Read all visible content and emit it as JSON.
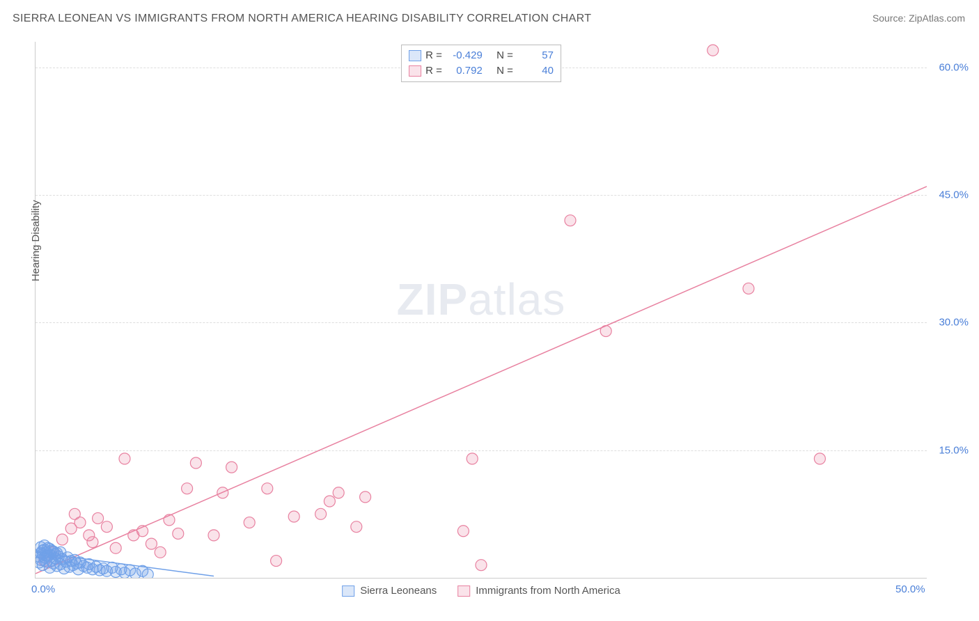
{
  "title": "SIERRA LEONEAN VS IMMIGRANTS FROM NORTH AMERICA HEARING DISABILITY CORRELATION CHART",
  "source": "Source: ZipAtlas.com",
  "y_axis_label": "Hearing Disability",
  "watermark": {
    "part1": "ZIP",
    "part2": "atlas"
  },
  "chart": {
    "type": "scatter",
    "x_range": [
      0,
      50
    ],
    "y_range": [
      0,
      63
    ],
    "x_ticks": [
      {
        "value": 0,
        "label": "0.0%"
      },
      {
        "value": 50,
        "label": "50.0%"
      }
    ],
    "y_ticks": [
      {
        "value": 15,
        "label": "15.0%"
      },
      {
        "value": 30,
        "label": "30.0%"
      },
      {
        "value": 45,
        "label": "45.0%"
      },
      {
        "value": 60,
        "label": "60.0%"
      }
    ],
    "background_color": "#ffffff",
    "grid_color": "#dddddd",
    "marker_radius": 8,
    "marker_opacity": 0.35,
    "marker_stroke_width": 1.2,
    "line_width": 1.5
  },
  "series": {
    "sierra_leoneans": {
      "label": "Sierra Leoneans",
      "color": "#6fa0e8",
      "fill": "rgba(111,160,232,0.25)",
      "r_value": "-0.429",
      "n_value": "57",
      "trend": {
        "x1": 0,
        "y1": 3.0,
        "x2": 10,
        "y2": 0.2
      },
      "points": [
        [
          0.2,
          1.8
        ],
        [
          0.3,
          2.1
        ],
        [
          0.4,
          1.5
        ],
        [
          0.5,
          2.4
        ],
        [
          0.6,
          1.9
        ],
        [
          0.7,
          2.6
        ],
        [
          0.8,
          1.2
        ],
        [
          0.9,
          2.0
        ],
        [
          1.0,
          1.7
        ],
        [
          1.1,
          2.3
        ],
        [
          1.2,
          1.4
        ],
        [
          1.3,
          2.5
        ],
        [
          1.4,
          1.6
        ],
        [
          1.5,
          2.2
        ],
        [
          1.6,
          1.1
        ],
        [
          1.7,
          1.9
        ],
        [
          1.8,
          2.4
        ],
        [
          1.9,
          1.3
        ],
        [
          2.0,
          2.0
        ],
        [
          2.1,
          1.5
        ],
        [
          2.2,
          2.1
        ],
        [
          2.3,
          1.7
        ],
        [
          2.4,
          1.0
        ],
        [
          2.5,
          1.8
        ],
        [
          2.7,
          1.4
        ],
        [
          2.9,
          1.2
        ],
        [
          3.0,
          1.6
        ],
        [
          3.2,
          1.0
        ],
        [
          3.4,
          1.3
        ],
        [
          3.6,
          0.9
        ],
        [
          3.8,
          1.1
        ],
        [
          4.0,
          0.8
        ],
        [
          4.3,
          1.2
        ],
        [
          4.5,
          0.7
        ],
        [
          4.8,
          1.0
        ],
        [
          5.0,
          0.6
        ],
        [
          5.3,
          0.9
        ],
        [
          5.6,
          0.5
        ],
        [
          6.0,
          0.8
        ],
        [
          6.3,
          0.4
        ],
        [
          0.4,
          2.8
        ],
        [
          0.6,
          3.0
        ],
        [
          0.8,
          2.7
        ],
        [
          1.0,
          3.1
        ],
        [
          1.2,
          2.9
        ],
        [
          0.5,
          3.3
        ],
        [
          0.7,
          3.5
        ],
        [
          0.9,
          3.2
        ],
        [
          0.3,
          3.6
        ],
        [
          0.5,
          3.8
        ],
        [
          0.2,
          2.5
        ],
        [
          0.3,
          2.9
        ],
        [
          0.4,
          3.2
        ],
        [
          0.6,
          2.6
        ],
        [
          0.8,
          3.4
        ],
        [
          1.1,
          2.8
        ],
        [
          1.4,
          3.0
        ]
      ]
    },
    "immigrants_na": {
      "label": "Immigrants from North America",
      "color": "#e881a0",
      "fill": "rgba(232,129,160,0.22)",
      "r_value": "0.792",
      "n_value": "40",
      "trend": {
        "x1": 0,
        "y1": 0.5,
        "x2": 50,
        "y2": 46
      },
      "points": [
        [
          0.5,
          2.0
        ],
        [
          1.0,
          3.0
        ],
        [
          1.5,
          4.5
        ],
        [
          2.0,
          5.8
        ],
        [
          2.5,
          6.5
        ],
        [
          3.0,
          5.0
        ],
        [
          3.5,
          7.0
        ],
        [
          4.0,
          6.0
        ],
        [
          4.5,
          3.5
        ],
        [
          5.0,
          14.0
        ],
        [
          6.0,
          5.5
        ],
        [
          6.5,
          4.0
        ],
        [
          7.0,
          3.0
        ],
        [
          7.5,
          6.8
        ],
        [
          8.0,
          5.2
        ],
        [
          8.5,
          10.5
        ],
        [
          9.0,
          13.5
        ],
        [
          10.0,
          5.0
        ],
        [
          10.5,
          10.0
        ],
        [
          11.0,
          13.0
        ],
        [
          12.0,
          6.5
        ],
        [
          13.0,
          10.5
        ],
        [
          13.5,
          2.0
        ],
        [
          14.5,
          7.2
        ],
        [
          16.0,
          7.5
        ],
        [
          16.5,
          9.0
        ],
        [
          17.0,
          10.0
        ],
        [
          18.0,
          6.0
        ],
        [
          18.5,
          9.5
        ],
        [
          24.0,
          5.5
        ],
        [
          24.5,
          14.0
        ],
        [
          25.0,
          1.5
        ],
        [
          30.0,
          42.0
        ],
        [
          32.0,
          29.0
        ],
        [
          38.0,
          62.0
        ],
        [
          40.0,
          34.0
        ],
        [
          44.0,
          14.0
        ],
        [
          2.2,
          7.5
        ],
        [
          3.2,
          4.2
        ],
        [
          5.5,
          5.0
        ]
      ]
    }
  },
  "stats_box": {
    "r_label": "R =",
    "n_label": "N ="
  }
}
